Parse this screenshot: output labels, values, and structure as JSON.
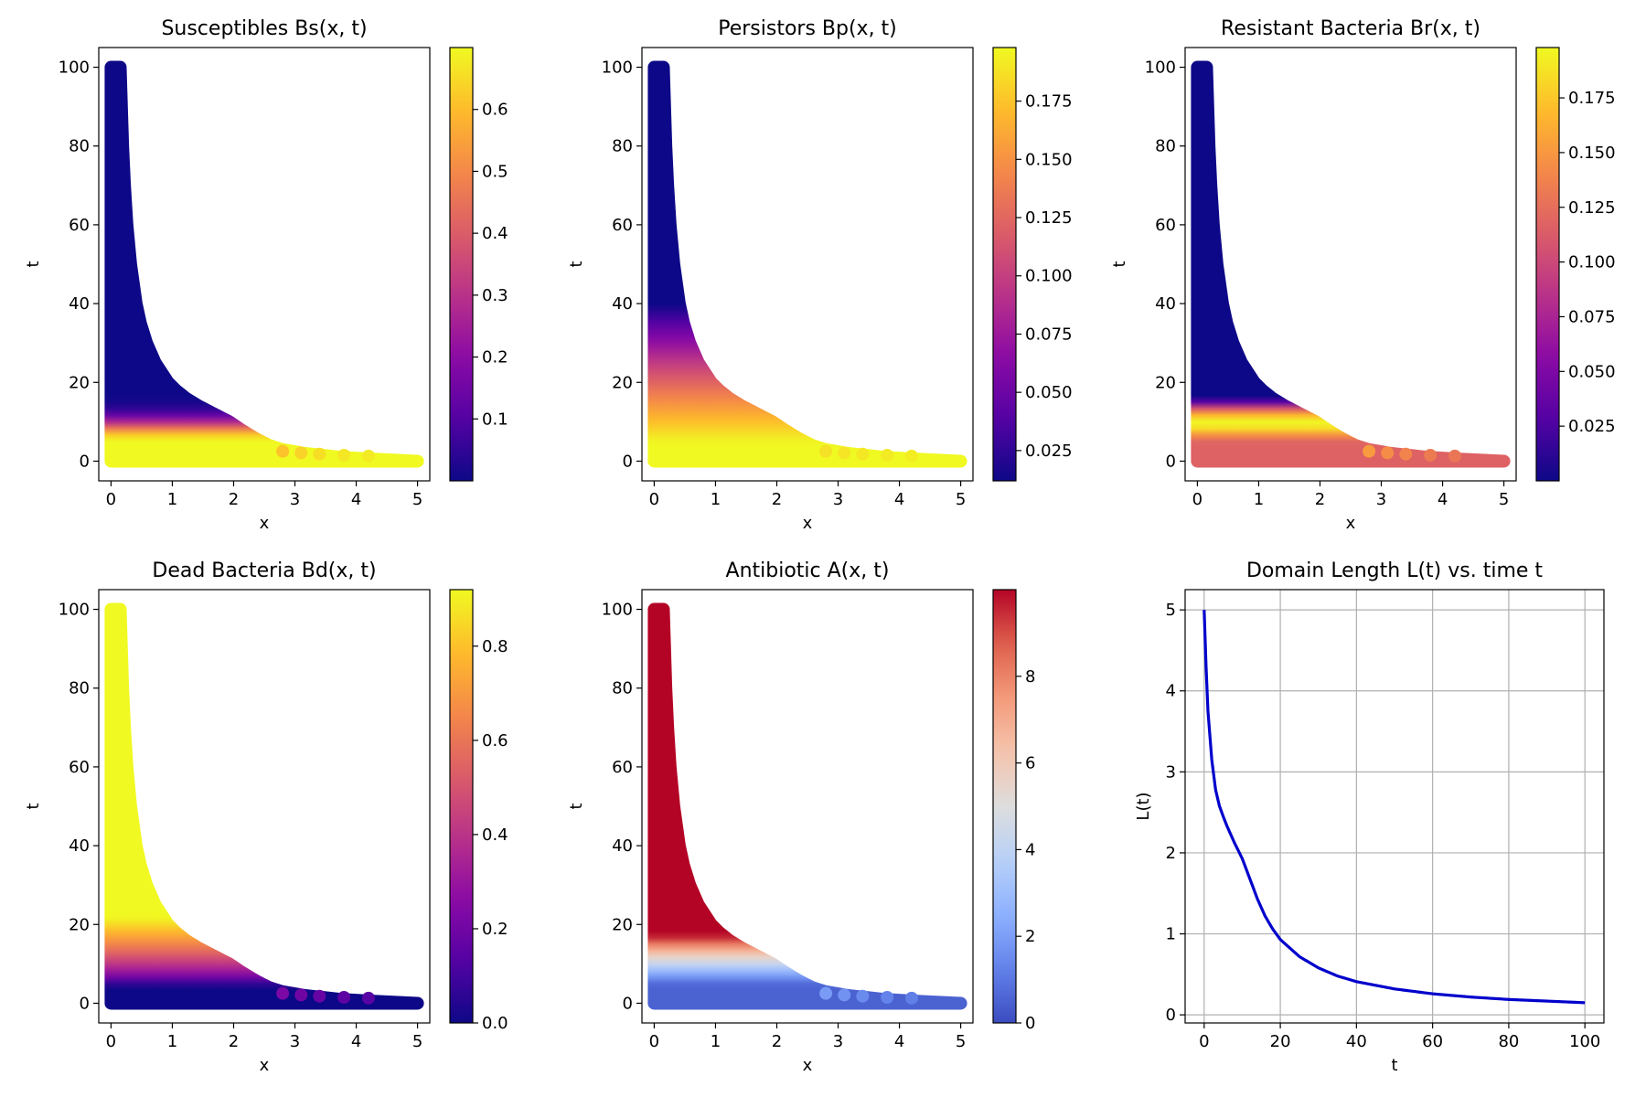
{
  "chart_data": [
    {
      "type": "heatmap",
      "title": "Susceptibles Bs(x, t)",
      "xlabel": "x",
      "ylabel": "t",
      "xlim": [
        -0.2,
        5.2
      ],
      "ylim": [
        -5,
        105
      ],
      "xticks": [
        "0",
        "1",
        "2",
        "3",
        "4",
        "5"
      ],
      "yticks": [
        "0",
        "20",
        "40",
        "60",
        "80",
        "100"
      ],
      "colormap": "plasma",
      "color_range": [
        0.0,
        0.7
      ],
      "colorbar_ticks": [
        "0.1",
        "0.2",
        "0.3",
        "0.4",
        "0.5",
        "0.6"
      ],
      "profile": "decay_from_bottom"
    },
    {
      "type": "heatmap",
      "title": "Persistors Bp(x, t)",
      "xlabel": "x",
      "ylabel": "t",
      "xlim": [
        -0.2,
        5.2
      ],
      "ylim": [
        -5,
        105
      ],
      "xticks": [
        "0",
        "1",
        "2",
        "3",
        "4",
        "5"
      ],
      "yticks": [
        "0",
        "20",
        "40",
        "60",
        "80",
        "100"
      ],
      "colormap": "plasma",
      "color_range": [
        0.012,
        0.198
      ],
      "colorbar_ticks": [
        "0.025",
        "0.050",
        "0.075",
        "0.100",
        "0.125",
        "0.150",
        "0.175"
      ],
      "profile": "slow_decay"
    },
    {
      "type": "heatmap",
      "title": "Resistant Bacteria Br(x, t)",
      "xlabel": "x",
      "ylabel": "t",
      "xlim": [
        -0.2,
        5.2
      ],
      "ylim": [
        -5,
        105
      ],
      "xticks": [
        "0",
        "1",
        "2",
        "3",
        "4",
        "5"
      ],
      "yticks": [
        "0",
        "20",
        "40",
        "60",
        "80",
        "100"
      ],
      "colormap": "plasma",
      "color_range": [
        0.0,
        0.198
      ],
      "colorbar_ticks": [
        "0.025",
        "0.050",
        "0.075",
        "0.100",
        "0.125",
        "0.150",
        "0.175"
      ],
      "profile": "hump"
    },
    {
      "type": "heatmap",
      "title": "Dead Bacteria Bd(x, t)",
      "xlabel": "x",
      "ylabel": "t",
      "xlim": [
        -0.2,
        5.2
      ],
      "ylim": [
        -5,
        105
      ],
      "xticks": [
        "0",
        "1",
        "2",
        "3",
        "4",
        "5"
      ],
      "yticks": [
        "0",
        "20",
        "40",
        "60",
        "80",
        "100"
      ],
      "colormap": "plasma",
      "color_range": [
        0.0,
        0.92
      ],
      "colorbar_ticks": [
        "0.0",
        "0.2",
        "0.4",
        "0.6",
        "0.8"
      ],
      "profile": "rise_from_bottom"
    },
    {
      "type": "heatmap",
      "title": "Antibiotic A(x, t)",
      "xlabel": "x",
      "ylabel": "t",
      "xlim": [
        -0.2,
        5.2
      ],
      "ylim": [
        -5,
        105
      ],
      "xticks": [
        "0",
        "1",
        "2",
        "3",
        "4",
        "5"
      ],
      "yticks": [
        "0",
        "20",
        "40",
        "60",
        "80",
        "100"
      ],
      "colormap": "coolwarm",
      "color_range": [
        0.0,
        10.0
      ],
      "colorbar_ticks": [
        "0",
        "2",
        "4",
        "6",
        "8"
      ],
      "profile": "antibiotic"
    },
    {
      "type": "line",
      "title": "Domain Length L(t) vs. time t",
      "xlabel": "t",
      "ylabel": "L(t)",
      "xlim": [
        -5,
        105
      ],
      "ylim": [
        -0.1,
        5.25
      ],
      "xticks": [
        "0",
        "20",
        "40",
        "60",
        "80",
        "100"
      ],
      "yticks": [
        "0",
        "1",
        "2",
        "3",
        "4",
        "5"
      ],
      "grid": true,
      "series": [
        {
          "name": "L(t)",
          "color": "#0000cc",
          "x": [
            0,
            0.5,
            1,
            2,
            3,
            4,
            5,
            6,
            8,
            10,
            12,
            14,
            16,
            18,
            20,
            25,
            30,
            35,
            40,
            50,
            60,
            70,
            80,
            90,
            100
          ],
          "y": [
            5.0,
            4.3,
            3.75,
            3.15,
            2.78,
            2.58,
            2.45,
            2.33,
            2.12,
            1.93,
            1.68,
            1.43,
            1.22,
            1.06,
            0.93,
            0.72,
            0.58,
            0.48,
            0.41,
            0.32,
            0.26,
            0.22,
            0.19,
            0.17,
            0.15
          ]
        }
      ]
    }
  ]
}
